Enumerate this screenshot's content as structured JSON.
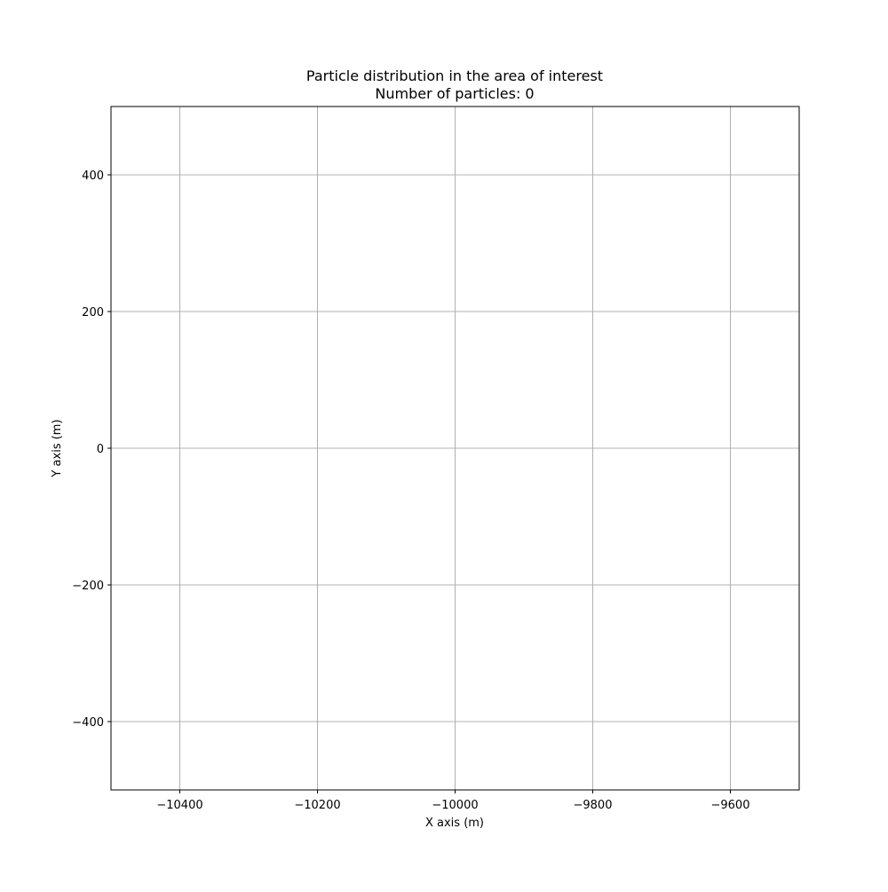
{
  "chart_data": {
    "type": "scatter",
    "title": "Particle distribution in the area of interest",
    "subtitle": "Number of particles: 0",
    "xlabel": "X axis (m)",
    "ylabel": "Y axis (m)",
    "xlim": [
      -10500,
      -9500
    ],
    "ylim": [
      -500,
      500
    ],
    "xticks": [
      -10400,
      -10200,
      -10000,
      -9800,
      -9600
    ],
    "yticks": [
      -400,
      -200,
      0,
      200,
      400
    ],
    "xtick_labels": [
      "−10400",
      "−10200",
      "−10000",
      "−9800",
      "−9600"
    ],
    "ytick_labels": [
      "−400",
      "−200",
      "0",
      "200",
      "400"
    ],
    "grid": true,
    "grid_color": "#b0b0b0",
    "points": []
  }
}
